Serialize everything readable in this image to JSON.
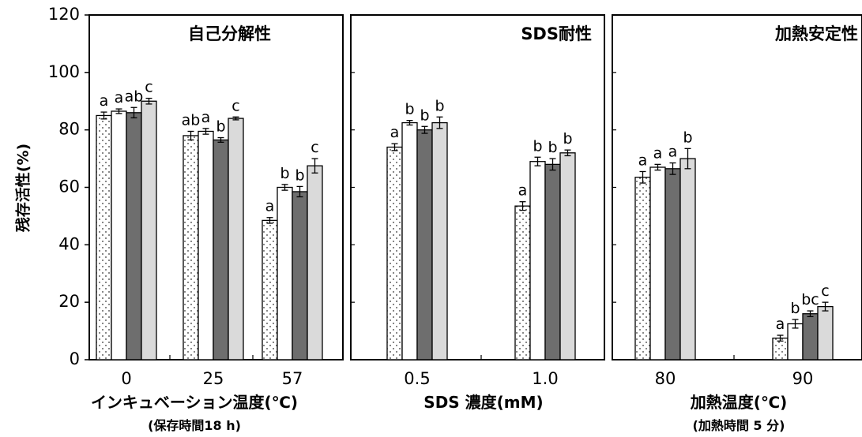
{
  "figure": {
    "ylabel": "残存活性(%)",
    "yticks": [
      "0",
      "20",
      "40",
      "60",
      "80",
      "100",
      "120"
    ]
  },
  "chart_data": [
    {
      "type": "bar",
      "title": "自己分解性",
      "xlabel": "インキュベーション温度(℃)",
      "sublabel": "(保存時間18 h)",
      "ylim": [
        0,
        120
      ],
      "categories": [
        "0",
        "25",
        "57"
      ],
      "series": [
        {
          "values": [
            85,
            78,
            48.5
          ],
          "errors": [
            1.2,
            1.5,
            1.0
          ],
          "labels": [
            "a",
            "ab",
            "a"
          ]
        },
        {
          "values": [
            86.5,
            79.5,
            60
          ],
          "errors": [
            0.8,
            1.0,
            1.0
          ],
          "labels": [
            "a",
            "a",
            "b"
          ]
        },
        {
          "values": [
            86,
            76.5,
            58.5
          ],
          "errors": [
            1.8,
            0.8,
            1.8
          ],
          "labels": [
            "ab",
            "b",
            "b"
          ]
        },
        {
          "values": [
            90,
            84,
            67.5
          ],
          "errors": [
            1.0,
            0.5,
            2.5
          ],
          "labels": [
            "c",
            "c",
            "c"
          ]
        }
      ]
    },
    {
      "type": "bar",
      "title": "SDS耐性",
      "xlabel": "SDS 濃度(mM)",
      "sublabel": "",
      "ylim": [
        0,
        120
      ],
      "categories": [
        "0.5",
        "1.0"
      ],
      "series": [
        {
          "values": [
            74,
            53.5
          ],
          "errors": [
            1.2,
            1.5
          ],
          "labels": [
            "a",
            "a"
          ]
        },
        {
          "values": [
            82.5,
            69
          ],
          "errors": [
            0.8,
            1.5
          ],
          "labels": [
            "b",
            "b"
          ]
        },
        {
          "values": [
            80,
            68
          ],
          "errors": [
            1.2,
            2.0
          ],
          "labels": [
            "b",
            "b"
          ]
        },
        {
          "values": [
            82.5,
            72
          ],
          "errors": [
            2.0,
            1.0
          ],
          "labels": [
            "b",
            "b"
          ]
        }
      ]
    },
    {
      "type": "bar",
      "title": "加熱安定性",
      "xlabel": "加熱温度(℃)",
      "sublabel": "(加熱時間 5 分)",
      "ylim": [
        0,
        120
      ],
      "categories": [
        "80",
        "90"
      ],
      "series": [
        {
          "values": [
            63.5,
            7.5
          ],
          "errors": [
            2.0,
            1.0
          ],
          "labels": [
            "a",
            "a"
          ]
        },
        {
          "values": [
            67,
            12.5
          ],
          "errors": [
            1.0,
            1.5
          ],
          "labels": [
            "a",
            "b"
          ]
        },
        {
          "values": [
            66.5,
            16
          ],
          "errors": [
            2.0,
            1.0
          ],
          "labels": [
            "a",
            "bc"
          ]
        },
        {
          "values": [
            70,
            18.5
          ],
          "errors": [
            3.5,
            1.5
          ],
          "labels": [
            "b",
            "c"
          ]
        }
      ]
    }
  ]
}
